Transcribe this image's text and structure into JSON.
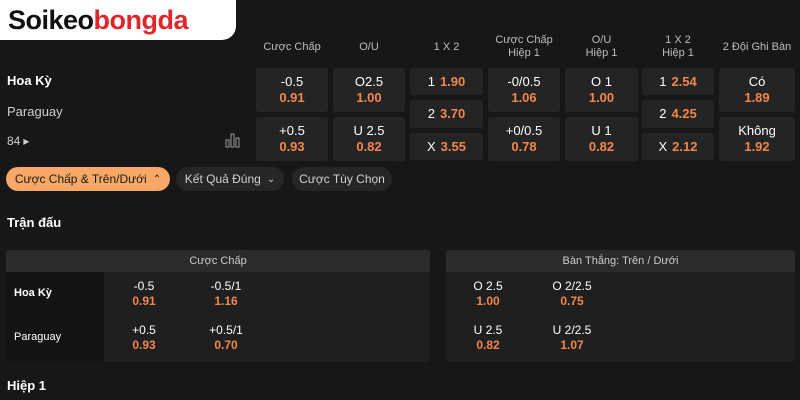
{
  "logo": {
    "part1": "Soikeo",
    "part2": "bongda"
  },
  "market_headers": [
    [
      "Cược Chấp"
    ],
    [
      "O/U"
    ],
    [
      "1 X 2"
    ],
    [
      "Cược Chấp",
      "Hiệp 1"
    ],
    [
      "O/U",
      "Hiệp 1"
    ],
    [
      "1 X 2",
      "Hiệp 1"
    ],
    [
      "2 Đội Ghi Bàn"
    ]
  ],
  "match": {
    "home": "Hoa Kỳ",
    "away": "Paraguay",
    "more_count": "84"
  },
  "markets": [
    [
      {
        "label": "-0.5",
        "odds": "0.91"
      },
      {
        "label": "+0.5",
        "odds": "0.93"
      }
    ],
    [
      {
        "label": "O2.5",
        "odds": "1.00"
      },
      {
        "label": "U 2.5",
        "odds": "0.82"
      }
    ],
    [
      {
        "label": "1",
        "odds": "1.90"
      },
      {
        "label": "2",
        "odds": "3.70"
      },
      {
        "label": "X",
        "odds": "3.55"
      }
    ],
    [
      {
        "label": "-0/0.5",
        "odds": "1.06"
      },
      {
        "label": "+0/0.5",
        "odds": "0.78"
      }
    ],
    [
      {
        "label": "O 1",
        "odds": "1.00"
      },
      {
        "label": "U 1",
        "odds": "0.82"
      }
    ],
    [
      {
        "label": "1",
        "odds": "2.54"
      },
      {
        "label": "2",
        "odds": "4.25"
      },
      {
        "label": "X",
        "odds": "2.12"
      }
    ],
    [
      {
        "label": "Có",
        "odds": "1.89"
      },
      {
        "label": "Không",
        "odds": "1.92"
      }
    ]
  ],
  "tabs": [
    "Cược Chấp & Trên/Dưới",
    "Kết Quả Đúng",
    "Cược Tùy Chọn"
  ],
  "section_title": "Trận đấu",
  "panels": [
    {
      "title": "Cược Chấp",
      "teams": [
        "Hoa Kỳ",
        "Paraguay"
      ],
      "rows": [
        [
          {
            "label": "-0.5",
            "odds": "0.91"
          },
          {
            "label": "-0.5/1",
            "odds": "1.16"
          }
        ],
        [
          {
            "label": "+0.5",
            "odds": "0.93"
          },
          {
            "label": "+0.5/1",
            "odds": "0.70"
          }
        ]
      ]
    },
    {
      "title": "Bàn Thắng: Trên / Dưới",
      "rows": [
        [
          {
            "label": "O 2.5",
            "odds": "1.00"
          },
          {
            "label": "O 2/2.5",
            "odds": "0.75"
          }
        ],
        [
          {
            "label": "U 2.5",
            "odds": "0.82"
          },
          {
            "label": "U 2/2.5",
            "odds": "1.07"
          }
        ]
      ]
    }
  ],
  "next_section": "Hiệp 1"
}
